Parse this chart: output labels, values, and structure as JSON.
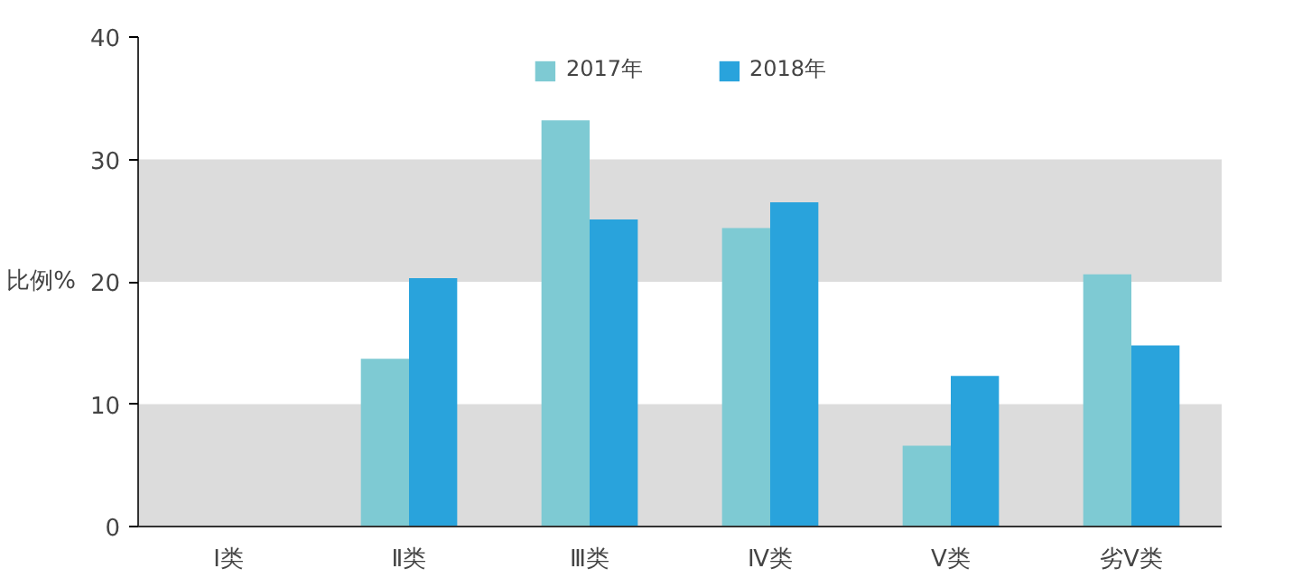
{
  "chart_data": {
    "type": "bar",
    "ylabel": "比例%",
    "categories": [
      "Ⅰ类",
      "Ⅱ类",
      "Ⅲ类",
      "Ⅳ类",
      "Ⅴ类",
      "劣Ⅴ类"
    ],
    "series": [
      {
        "name": "2017年",
        "color": "#7ecad3",
        "values": [
          0,
          13.7,
          33.2,
          24.4,
          6.6,
          20.6
        ]
      },
      {
        "name": "2018年",
        "color": "#29a3dc",
        "values": [
          0,
          20.3,
          25.1,
          26.5,
          12.3,
          14.8
        ]
      }
    ],
    "ylim": [
      0,
      40
    ],
    "yticks": [
      0,
      10,
      20,
      30,
      40
    ],
    "legend": "top right",
    "bands": [
      {
        "axis": "y",
        "from": 0,
        "to": 10,
        "color": "#dcdcdc"
      },
      {
        "axis": "y",
        "from": 20,
        "to": 30,
        "color": "#dcdcdc"
      }
    ]
  }
}
